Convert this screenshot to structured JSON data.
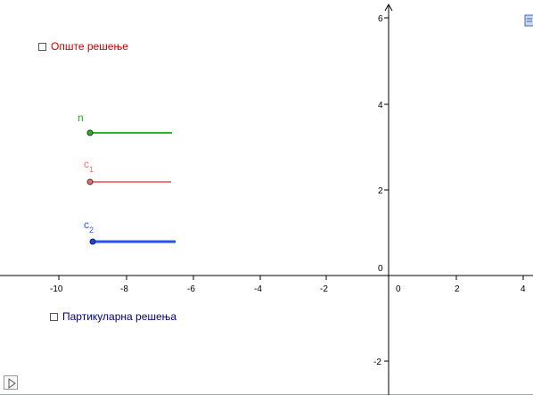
{
  "checkboxes": {
    "general": {
      "label": "Опште решење",
      "checked": false,
      "color": "#cc0000"
    },
    "particular": {
      "label": "Партикуларна решења",
      "checked": false,
      "color": "#000080"
    }
  },
  "axes": {
    "x_ticks": [
      "-10",
      "-8",
      "-6",
      "-4",
      "-2",
      "0",
      "2",
      "4"
    ],
    "y_ticks": [
      "6",
      "4",
      "2",
      "0",
      "-2"
    ]
  },
  "sliders": [
    {
      "name": "n",
      "base": "n",
      "subscript": "",
      "color": "#22aa22",
      "knob_color": "#1a6e1a"
    },
    {
      "name": "c1",
      "base": "c",
      "subscript": "1",
      "color": "#f07070",
      "knob_color": "#b04040"
    },
    {
      "name": "c2",
      "base": "c",
      "subscript": "2",
      "color": "#2255ee",
      "knob_color": "#1133aa"
    }
  ],
  "icons": {
    "play": "play-icon",
    "corner": "graphics-view-icon"
  }
}
